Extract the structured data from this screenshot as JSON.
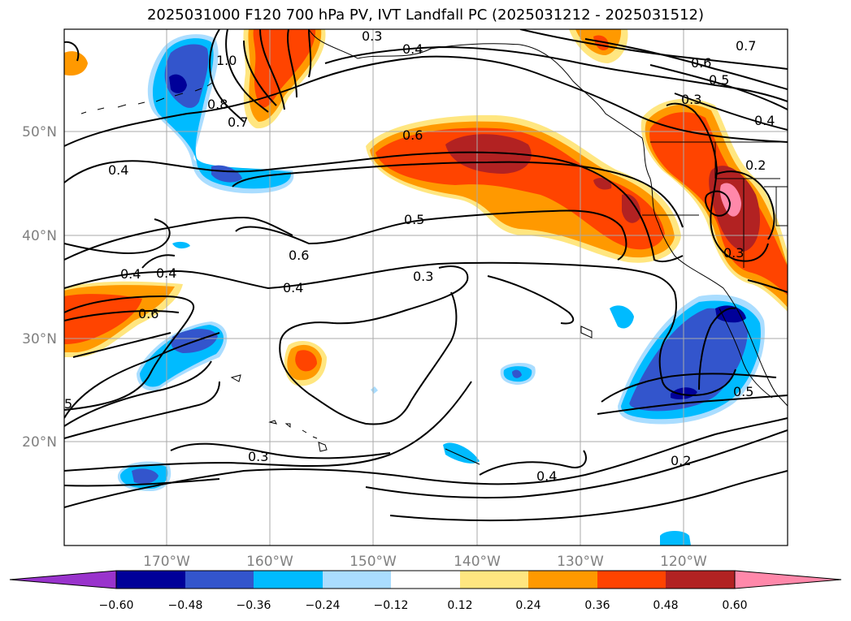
{
  "title": "2025031000 F120 700 hPa PV, IVT Landfall PC (2025031212 - 2025031512)",
  "longitude_labels": [
    "170°W",
    "160°W",
    "150°W",
    "140°W",
    "130°W",
    "120°W"
  ],
  "latitude_labels": [
    "50°N",
    "40°N",
    "30°N",
    "20°N"
  ],
  "colorbar": {
    "colors": [
      "#9933cc",
      "#000099",
      "#3355cc",
      "#00bbff",
      "#aaddff",
      "#ffffff",
      "#ffe680",
      "#ff9900",
      "#ff4400",
      "#b22222",
      "#ff88aa"
    ],
    "ticks": [
      "−0.60",
      "−0.48",
      "−0.36",
      "−0.24",
      "−0.12",
      "0.12",
      "0.24",
      "0.36",
      "0.48",
      "0.60"
    ]
  },
  "contour_labels": [
    "0.3",
    "0.4",
    "0.7",
    "0.6",
    "0.5",
    "0.4",
    "0.3",
    "0.2",
    "1.0",
    "0.8",
    "0.7",
    "0.4",
    "0.6",
    "0.5",
    "0.6",
    "0.4",
    "0.3",
    "0.4",
    "0.4",
    "0.6",
    "0.3",
    "0.4",
    "0.2",
    "0.5",
    "0.3",
    "5"
  ]
}
